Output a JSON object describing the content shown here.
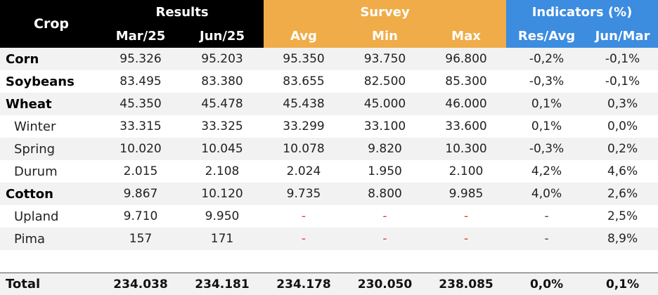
{
  "header": {
    "crop": "Crop",
    "groups": {
      "results": "Results",
      "survey": "Survey",
      "indicators": "Indicators (%)"
    },
    "columns": [
      "Mar/25",
      "Jun/25",
      "Avg",
      "Min",
      "Max",
      "Res/Avg",
      "Jun/Mar"
    ]
  },
  "rows": [
    {
      "crop": "Corn",
      "sub": false,
      "values": [
        "95.326",
        "95.203",
        "95.350",
        "93.750",
        "96.800",
        "-0,2%",
        "-0,1%"
      ]
    },
    {
      "crop": "Soybeans",
      "sub": false,
      "values": [
        "83.495",
        "83.380",
        "83.655",
        "82.500",
        "85.300",
        "-0,3%",
        "-0,1%"
      ]
    },
    {
      "crop": "Wheat",
      "sub": false,
      "values": [
        "45.350",
        "45.478",
        "45.438",
        "45.000",
        "46.000",
        "0,1%",
        "0,3%"
      ]
    },
    {
      "crop": "Winter",
      "sub": true,
      "values": [
        "33.315",
        "33.325",
        "33.299",
        "33.100",
        "33.600",
        "0,1%",
        "0,0%"
      ]
    },
    {
      "crop": "Spring",
      "sub": true,
      "values": [
        "10.020",
        "10.045",
        "10.078",
        "9.820",
        "10.300",
        "-0,3%",
        "0,2%"
      ]
    },
    {
      "crop": "Durum",
      "sub": true,
      "values": [
        "2.015",
        "2.108",
        "2.024",
        "1.950",
        "2.100",
        "4,2%",
        "4,6%"
      ]
    },
    {
      "crop": "Cotton",
      "sub": false,
      "values": [
        "9.867",
        "10.120",
        "9.735",
        "8.800",
        "9.985",
        "4,0%",
        "2,6%"
      ]
    },
    {
      "crop": "Upland",
      "sub": true,
      "values": [
        "9.710",
        "9.950",
        "-",
        "-",
        "-",
        "-",
        "2,5%"
      ]
    },
    {
      "crop": "Pima",
      "sub": true,
      "values": [
        "157",
        "171",
        "-",
        "-",
        "-",
        "-",
        "8,9%"
      ]
    }
  ],
  "total": {
    "label": "Total",
    "values": [
      "234.038",
      "234.181",
      "234.178",
      "230.050",
      "238.085",
      "0,0%",
      "0,1%"
    ]
  },
  "colors": {
    "results_header": "#000000",
    "survey_header": "#f0ac48",
    "indicators_header": "#3c8ce0",
    "missing_dash": "#e03a2e",
    "row_shade": "#f2f2f2"
  }
}
